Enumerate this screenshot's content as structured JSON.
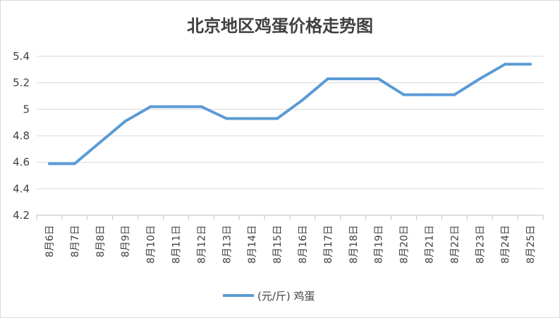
{
  "chart_data": {
    "type": "line",
    "title": "北京地区鸡蛋价格走势图",
    "categories": [
      "8月6日",
      "8月7日",
      "8月8日",
      "8月9日",
      "8月10日",
      "8月11日",
      "8月12日",
      "8月13日",
      "8月14日",
      "8月15日",
      "8月16日",
      "8月17日",
      "8月18日",
      "8月19日",
      "8月20日",
      "8月21日",
      "8月22日",
      "8月23日",
      "8月24日",
      "8月25日"
    ],
    "series": [
      {
        "name": "(元/斤) 鸡蛋",
        "color": "#5b9bd5",
        "values": [
          4.59,
          4.59,
          4.75,
          4.91,
          5.02,
          5.02,
          5.02,
          4.93,
          4.93,
          4.93,
          5.07,
          5.23,
          5.23,
          5.23,
          5.11,
          5.11,
          5.11,
          5.23,
          5.34,
          5.34
        ]
      }
    ],
    "ylim": [
      4.2,
      5.4
    ],
    "yticks": [
      "4.2",
      "4.4",
      "4.6",
      "4.8",
      "5",
      "5.2",
      "5.4"
    ],
    "grid": true,
    "legend": "bottom"
  }
}
